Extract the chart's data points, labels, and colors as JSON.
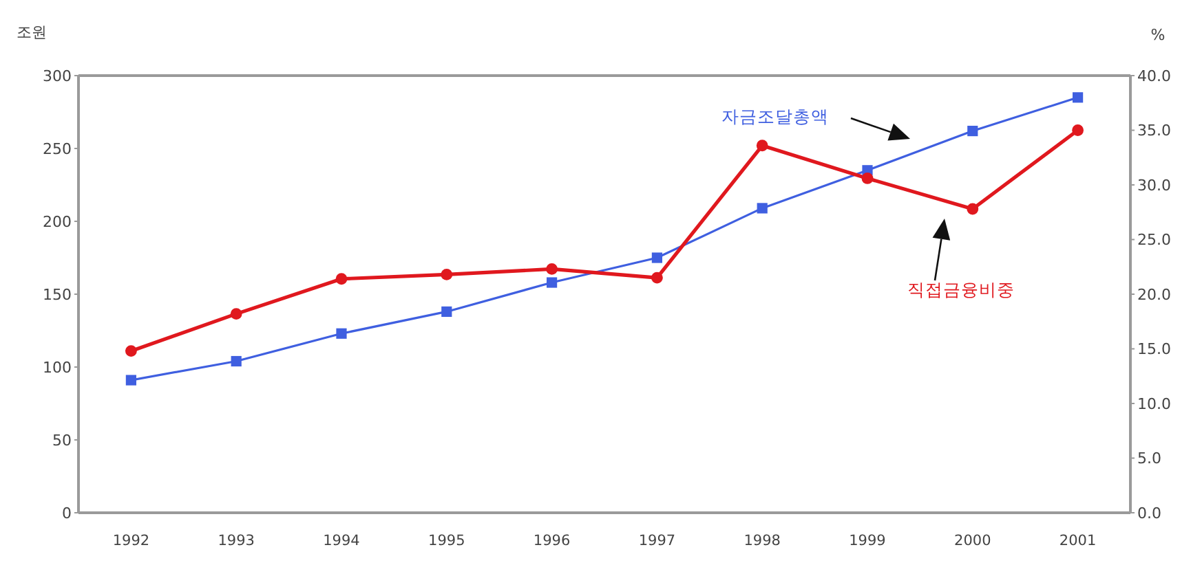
{
  "chart_data": {
    "type": "line",
    "ylabel": "조원",
    "y2label": "%",
    "categories": [
      "1992",
      "1993",
      "1994",
      "1995",
      "1996",
      "1997",
      "1998",
      "1999",
      "2000",
      "2001"
    ],
    "series": [
      {
        "name": "자금조달총액",
        "color": "#3f5fe0",
        "marker": "square",
        "values": [
          91,
          104,
          123,
          138,
          158,
          175,
          209,
          235,
          262,
          285
        ]
      },
      {
        "name": "직접금융비중",
        "color": "#e0181e",
        "marker": "circle",
        "axis": "y2",
        "values": [
          14.8,
          18.2,
          21.4,
          21.8,
          22.3,
          21.5,
          33.6,
          30.6,
          27.8,
          35.0
        ]
      }
    ],
    "ylim": [
      0,
      300
    ],
    "yticks": [
      0,
      50,
      100,
      150,
      200,
      250,
      300
    ],
    "y2lim": [
      0,
      40
    ],
    "y2ticks": [
      {
        "value": 0,
        "label": "0.0"
      },
      {
        "value": 5,
        "label": "5.0"
      },
      {
        "value": 10,
        "label": "10.0"
      },
      {
        "value": 15,
        "label": "15.0"
      },
      {
        "value": 20,
        "label": "20.0"
      },
      {
        "value": 25,
        "label": "25.0"
      },
      {
        "value": 30,
        "label": "30.0"
      },
      {
        "value": 35,
        "label": "35.0"
      },
      {
        "value": 40,
        "label": "40.0"
      }
    ],
    "grid": false,
    "legend": false
  }
}
